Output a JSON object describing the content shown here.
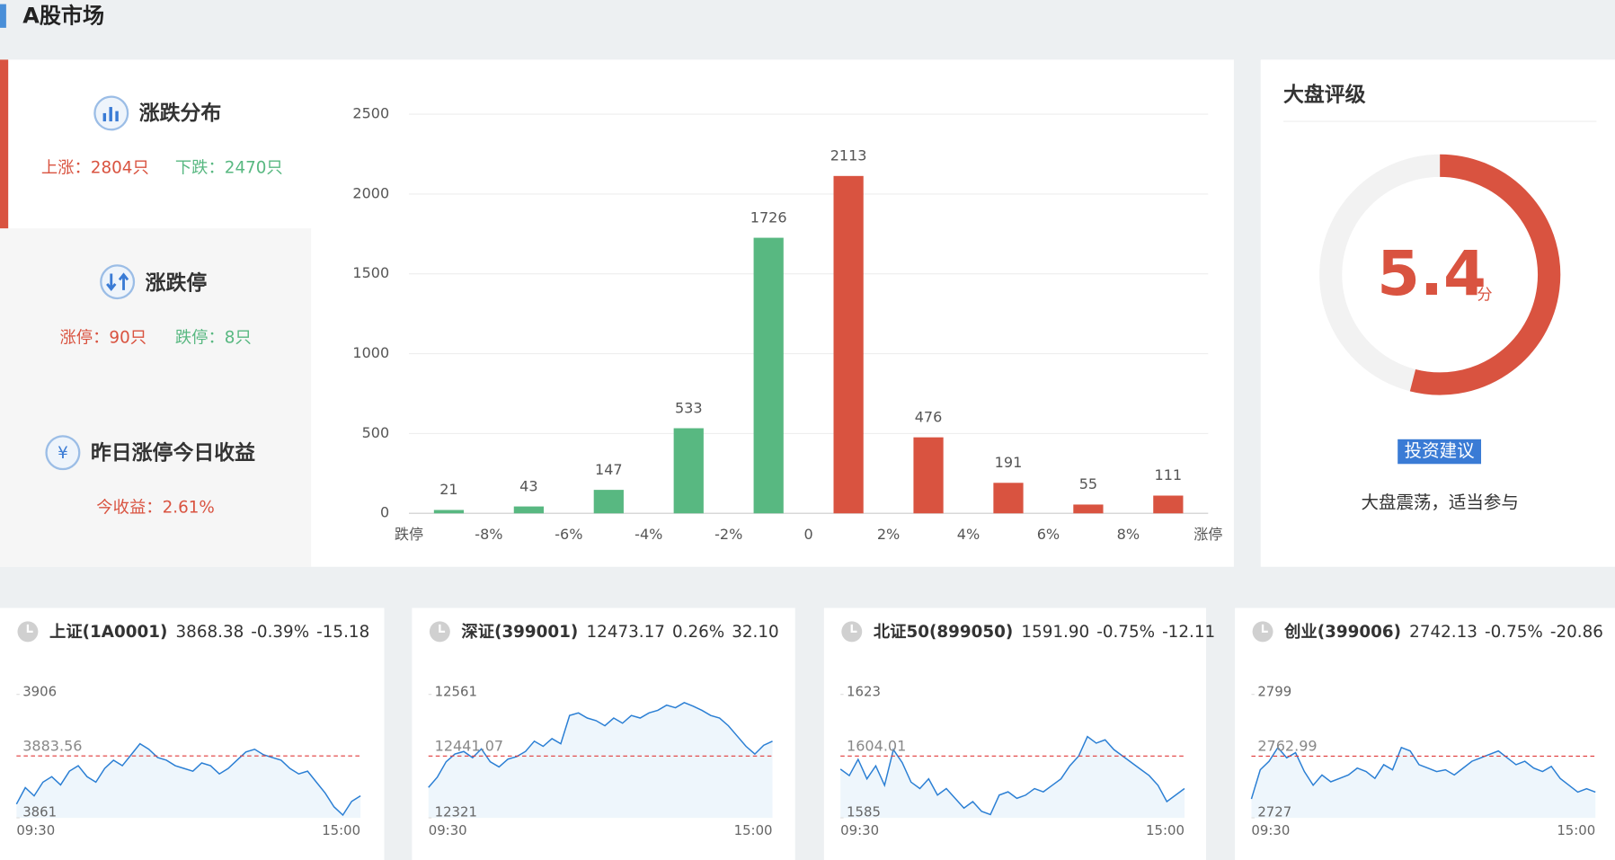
{
  "header": {
    "title": "A股市场"
  },
  "distribution": {
    "title": "涨跌分布",
    "up": "上涨：2804只",
    "down": "下跌：2470只"
  },
  "limits": {
    "title": "涨跌停",
    "up": "涨停：90只",
    "down": "跌停：8只"
  },
  "yesterday": {
    "title": "昨日涨停今日收益",
    "gain": "今收益：2.61%"
  },
  "chart_data": {
    "type": "bar",
    "x_labels": [
      "跌停",
      "-8%",
      "-6%",
      "-4%",
      "-2%",
      "0",
      "2%",
      "4%",
      "6%",
      "8%",
      "涨停"
    ],
    "values": [
      21,
      43,
      147,
      533,
      1726,
      2113,
      476,
      191,
      55,
      111
    ],
    "colors": [
      "#58b881",
      "#58b881",
      "#58b881",
      "#58b881",
      "#58b881",
      "#d95340",
      "#d95340",
      "#d95340",
      "#d95340",
      "#d95340"
    ],
    "ylim": [
      0,
      2500
    ],
    "yticks": [
      0,
      500,
      1000,
      1500,
      2000,
      2500
    ],
    "grid": true
  },
  "rating": {
    "title": "大盘评级",
    "score": 5.4,
    "unit": "分",
    "scale_max": 10,
    "color": "#d95340",
    "button": "投资建议",
    "advice": "大盘震荡，适当参与"
  },
  "cards": [
    {
      "type": "line",
      "name": "上证(1A0001)",
      "price": "3868.38",
      "pct": "-0.39%",
      "change": "-15.18",
      "ylim": [
        3861,
        3906
      ],
      "yticks": [
        3861,
        3906
      ],
      "reference": 3883.56,
      "x_labels": [
        "09:30",
        "15:00"
      ],
      "values": [
        3866,
        3872,
        3869,
        3874,
        3876,
        3873,
        3878,
        3880,
        3876,
        3874,
        3879,
        3882,
        3880,
        3884,
        3888,
        3886,
        3883,
        3882,
        3880,
        3879,
        3878,
        3881,
        3880,
        3877,
        3879,
        3882,
        3885,
        3886,
        3884,
        3883,
        3882,
        3879,
        3877,
        3878,
        3874,
        3870,
        3865,
        3862,
        3867,
        3869
      ]
    },
    {
      "type": "line",
      "name": "深证(399001)",
      "price": "12473.17",
      "pct": "0.26%",
      "change": "32.10",
      "ylim": [
        12321,
        12561
      ],
      "yticks": [
        12321,
        12561
      ],
      "reference": 12441.07,
      "x_labels": [
        "09:30",
        "15:00"
      ],
      "values": [
        12380,
        12400,
        12430,
        12445,
        12450,
        12438,
        12455,
        12430,
        12420,
        12435,
        12440,
        12450,
        12470,
        12460,
        12475,
        12465,
        12520,
        12525,
        12515,
        12510,
        12500,
        12515,
        12505,
        12520,
        12515,
        12525,
        12530,
        12540,
        12535,
        12545,
        12538,
        12530,
        12520,
        12515,
        12500,
        12480,
        12460,
        12445,
        12462,
        12470
      ]
    },
    {
      "type": "line",
      "name": "北证50(899050)",
      "price": "1591.90",
      "pct": "-0.75%",
      "change": "-12.11",
      "ylim": [
        1585,
        1623
      ],
      "yticks": [
        1585,
        1623
      ],
      "reference": 1604.01,
      "x_labels": [
        "09:30",
        "15:00"
      ],
      "values": [
        1600,
        1598,
        1603,
        1597,
        1601,
        1595,
        1606,
        1602,
        1596,
        1594,
        1597,
        1592,
        1594,
        1591,
        1588,
        1590,
        1587,
        1586,
        1592,
        1593,
        1591,
        1592,
        1594,
        1593,
        1595,
        1597,
        1601,
        1604,
        1610,
        1608,
        1609,
        1606,
        1604,
        1602,
        1600,
        1598,
        1595,
        1590,
        1592,
        1594
      ]
    },
    {
      "type": "line",
      "name": "创业(399006)",
      "price": "2742.13",
      "pct": "-0.75%",
      "change": "-20.86",
      "ylim": [
        2727,
        2799
      ],
      "yticks": [
        2727,
        2799
      ],
      "reference": 2762.99,
      "x_labels": [
        "09:30",
        "15:00"
      ],
      "values": [
        2738,
        2755,
        2760,
        2768,
        2762,
        2765,
        2754,
        2746,
        2752,
        2748,
        2750,
        2752,
        2756,
        2754,
        2750,
        2758,
        2755,
        2768,
        2766,
        2758,
        2756,
        2754,
        2755,
        2752,
        2756,
        2760,
        2762,
        2764,
        2766,
        2762,
        2758,
        2760,
        2756,
        2754,
        2757,
        2750,
        2746,
        2742,
        2744,
        2742
      ]
    }
  ]
}
